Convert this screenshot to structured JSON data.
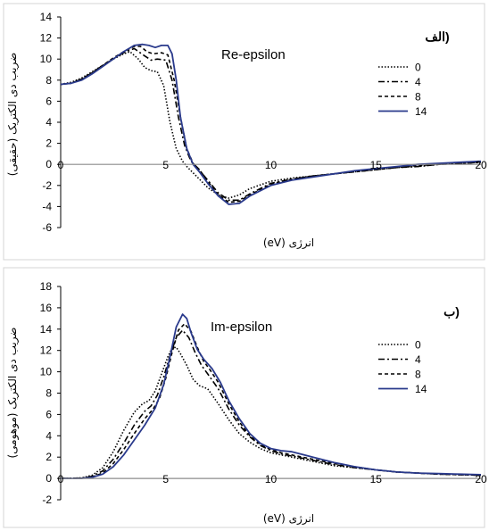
{
  "chart_data": [
    {
      "type": "line",
      "panel_tag": "(الف",
      "title": "Re-epsilon",
      "xlabel": "انرژی (eV)",
      "ylabel": "ضریب دی الکتریک (حقیقی)",
      "xlim": [
        0,
        20
      ],
      "ylim": [
        -6,
        14
      ],
      "xticks": [
        0,
        5,
        10,
        15,
        20
      ],
      "yticks": [
        -6,
        -4,
        -2,
        0,
        2,
        4,
        6,
        8,
        10,
        12,
        14
      ],
      "grid": false,
      "legend_position": "right",
      "series": [
        {
          "name": "0",
          "dash": "1.5,2",
          "color": "#000000",
          "x": [
            0,
            0.5,
            1,
            1.5,
            2,
            2.5,
            3,
            3.3,
            3.7,
            4,
            4.3,
            4.6,
            4.9,
            5.2,
            5.5,
            5.8,
            6.0,
            6.5,
            7.0,
            7.5,
            8.0,
            8.5,
            9,
            10,
            11,
            12,
            13,
            14,
            15,
            16,
            17,
            18,
            19,
            20
          ],
          "y": [
            7.6,
            7.8,
            8.2,
            8.8,
            9.4,
            10.0,
            10.5,
            10.7,
            10.0,
            9.2,
            8.9,
            8.8,
            7.5,
            4.0,
            1.5,
            0.3,
            -0.2,
            -1.2,
            -2.2,
            -2.9,
            -3.2,
            -2.9,
            -2.3,
            -1.6,
            -1.3,
            -1.1,
            -0.9,
            -0.7,
            -0.5,
            -0.3,
            -0.2,
            0.0,
            0.1,
            0.2
          ]
        },
        {
          "name": "4",
          "dash": "7,3,2,3",
          "color": "#000000",
          "x": [
            0,
            0.5,
            1,
            1.5,
            2,
            2.5,
            3,
            3.5,
            4,
            4.3,
            4.6,
            5.0,
            5.3,
            5.6,
            5.9,
            6.2,
            6.5,
            7.0,
            7.5,
            8.0,
            8.5,
            9,
            10,
            11,
            12,
            13,
            14,
            15,
            16,
            17,
            18,
            19,
            20
          ],
          "y": [
            7.6,
            7.7,
            8.1,
            8.7,
            9.4,
            10.0,
            10.6,
            11.0,
            10.3,
            9.9,
            10.0,
            9.9,
            8.0,
            4.5,
            1.8,
            0.3,
            -0.3,
            -1.5,
            -2.7,
            -3.4,
            -3.4,
            -2.8,
            -1.8,
            -1.4,
            -1.1,
            -0.9,
            -0.7,
            -0.5,
            -0.3,
            -0.2,
            0.0,
            0.1,
            0.2
          ]
        },
        {
          "name": "8",
          "dash": "4,3",
          "color": "#000000",
          "x": [
            0,
            0.5,
            1,
            1.5,
            2,
            2.5,
            3,
            3.5,
            3.8,
            4.1,
            4.4,
            4.8,
            5.1,
            5.4,
            5.7,
            6.0,
            6.3,
            6.6,
            7.0,
            7.5,
            8.0,
            8.5,
            9,
            10,
            11,
            12,
            13,
            14,
            15,
            16,
            17,
            18,
            19,
            20
          ],
          "y": [
            7.6,
            7.7,
            8.1,
            8.7,
            9.4,
            10.1,
            10.7,
            11.2,
            11.2,
            10.7,
            10.5,
            10.6,
            10.4,
            8.0,
            4.5,
            1.5,
            0.1,
            -0.5,
            -1.6,
            -2.9,
            -3.6,
            -3.5,
            -2.9,
            -1.9,
            -1.4,
            -1.1,
            -0.9,
            -0.7,
            -0.5,
            -0.3,
            -0.1,
            0.0,
            0.1,
            0.2
          ]
        },
        {
          "name": "14",
          "dash": "",
          "color": "#2a3a8c",
          "x": [
            0,
            0.5,
            1,
            1.5,
            2,
            2.5,
            3,
            3.5,
            3.9,
            4.2,
            4.5,
            4.8,
            5.1,
            5.3,
            5.5,
            5.7,
            6.0,
            6.3,
            6.6,
            7.0,
            7.5,
            8.0,
            8.5,
            9,
            10,
            11,
            12,
            13,
            14,
            15,
            16,
            17,
            18,
            19,
            20
          ],
          "y": [
            7.6,
            7.7,
            8.0,
            8.6,
            9.3,
            10.0,
            10.7,
            11.3,
            11.4,
            11.3,
            11.1,
            11.3,
            11.3,
            10.5,
            8.0,
            4.5,
            1.5,
            0.0,
            -0.7,
            -1.8,
            -3.0,
            -3.8,
            -3.7,
            -3.0,
            -2.0,
            -1.5,
            -1.2,
            -0.9,
            -0.6,
            -0.4,
            -0.2,
            0.0,
            0.1,
            0.2,
            0.3
          ]
        }
      ]
    },
    {
      "type": "line",
      "panel_tag": "(ب",
      "title": "Im-epsilon",
      "xlabel": "انرژی (eV)",
      "ylabel": "ضریب دی الکتریک (موهومی)",
      "xlim": [
        0,
        20
      ],
      "ylim": [
        -2,
        18
      ],
      "xticks": [
        0,
        5,
        10,
        15,
        20
      ],
      "yticks": [
        -2,
        0,
        2,
        4,
        6,
        8,
        10,
        12,
        14,
        16,
        18
      ],
      "grid": false,
      "legend_position": "right",
      "series": [
        {
          "name": "0",
          "dash": "1.5,2",
          "color": "#000000",
          "x": [
            0,
            1.0,
            1.5,
            2.0,
            2.5,
            3.0,
            3.5,
            3.9,
            4.2,
            4.5,
            4.8,
            5.1,
            5.3,
            5.5,
            5.7,
            6.0,
            6.3,
            6.6,
            7.0,
            7.5,
            8.0,
            8.5,
            9,
            9.5,
            10,
            10.5,
            11,
            12,
            13,
            14,
            15,
            16,
            17,
            18,
            19,
            20
          ],
          "y": [
            0,
            0.05,
            0.3,
            1.0,
            2.5,
            4.5,
            6.2,
            7.0,
            7.3,
            8.2,
            9.8,
            11.4,
            12.2,
            12.3,
            11.7,
            10.6,
            9.3,
            8.7,
            8.4,
            7.0,
            5.5,
            4.2,
            3.4,
            2.8,
            2.4,
            2.2,
            2.0,
            1.6,
            1.2,
            1.0,
            0.8,
            0.6,
            0.5,
            0.4,
            0.35,
            0.3
          ]
        },
        {
          "name": "4",
          "dash": "7,3,2,3",
          "color": "#000000",
          "x": [
            0,
            1.0,
            1.5,
            2.0,
            2.5,
            3.0,
            3.5,
            4.0,
            4.3,
            4.6,
            4.9,
            5.2,
            5.5,
            5.8,
            6.1,
            6.4,
            6.7,
            7.0,
            7.5,
            8.0,
            8.5,
            9,
            9.5,
            10,
            10.5,
            11,
            12,
            13,
            14,
            15,
            16,
            17,
            18,
            19,
            20
          ],
          "y": [
            0,
            0.03,
            0.2,
            0.7,
            1.8,
            3.3,
            5.0,
            6.3,
            6.8,
            7.8,
            9.5,
            11.5,
            13.2,
            13.9,
            13.2,
            11.8,
            10.6,
            9.8,
            8.4,
            6.5,
            5.0,
            3.9,
            3.1,
            2.6,
            2.3,
            2.1,
            1.7,
            1.3,
            1.0,
            0.8,
            0.6,
            0.5,
            0.4,
            0.35,
            0.3
          ]
        },
        {
          "name": "8",
          "dash": "4,3",
          "color": "#000000",
          "x": [
            0,
            1.0,
            1.5,
            2.0,
            2.5,
            3.0,
            3.5,
            4.0,
            4.4,
            4.7,
            5.0,
            5.3,
            5.6,
            5.9,
            6.2,
            6.5,
            6.8,
            7.1,
            7.5,
            8.0,
            8.5,
            9,
            9.5,
            10,
            10.5,
            11,
            12,
            13,
            14,
            15,
            16,
            17,
            18,
            19,
            20
          ],
          "y": [
            0,
            0.02,
            0.15,
            0.5,
            1.4,
            2.7,
            4.2,
            5.6,
            6.5,
            7.5,
            9.4,
            11.8,
            13.9,
            14.5,
            13.8,
            12.3,
            11.0,
            10.2,
            9.0,
            7.0,
            5.3,
            4.0,
            3.2,
            2.7,
            2.4,
            2.2,
            1.8,
            1.4,
            1.1,
            0.8,
            0.6,
            0.5,
            0.4,
            0.35,
            0.3
          ]
        },
        {
          "name": "14",
          "dash": "",
          "color": "#2a3a8c",
          "x": [
            0,
            1.0,
            1.5,
            2.0,
            2.5,
            3.0,
            3.5,
            4.0,
            4.5,
            4.9,
            5.2,
            5.5,
            5.8,
            6.0,
            6.2,
            6.5,
            6.8,
            7.2,
            7.6,
            8.0,
            8.5,
            9,
            9.5,
            10,
            10.5,
            11,
            12,
            13,
            14,
            15,
            16,
            17,
            18,
            19,
            20
          ],
          "y": [
            0,
            0.01,
            0.1,
            0.4,
            1.1,
            2.2,
            3.6,
            5.0,
            6.6,
            8.8,
            11.4,
            14.2,
            15.4,
            15.0,
            13.7,
            12.1,
            11.2,
            10.3,
            9.0,
            7.3,
            5.6,
            4.2,
            3.3,
            2.8,
            2.6,
            2.5,
            2.0,
            1.5,
            1.1,
            0.8,
            0.6,
            0.5,
            0.45,
            0.4,
            0.35
          ]
        }
      ]
    }
  ]
}
